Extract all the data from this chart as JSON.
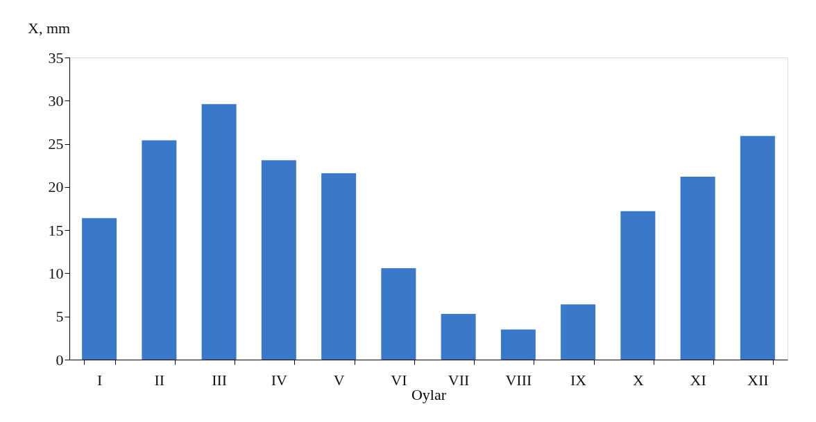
{
  "chart_data": {
    "type": "bar",
    "xlabel": "Oylar",
    "ylabel": "X, mm",
    "categories": [
      "I",
      "II",
      "III",
      "IV",
      "V",
      "VI",
      "VII",
      "VIII",
      "IX",
      "X",
      "XI",
      "XII"
    ],
    "series": [
      {
        "color": "#3a78c9",
        "values": [
          16.4,
          25.4,
          29.6,
          23.1,
          21.6,
          10.6,
          5.3,
          3.5,
          6.4,
          17.2,
          21.2,
          25.9
        ]
      }
    ],
    "ylim": [
      0,
      35
    ],
    "yticks": [
      0,
      5,
      10,
      15,
      20,
      25,
      30,
      35
    ],
    "grid": false
  }
}
